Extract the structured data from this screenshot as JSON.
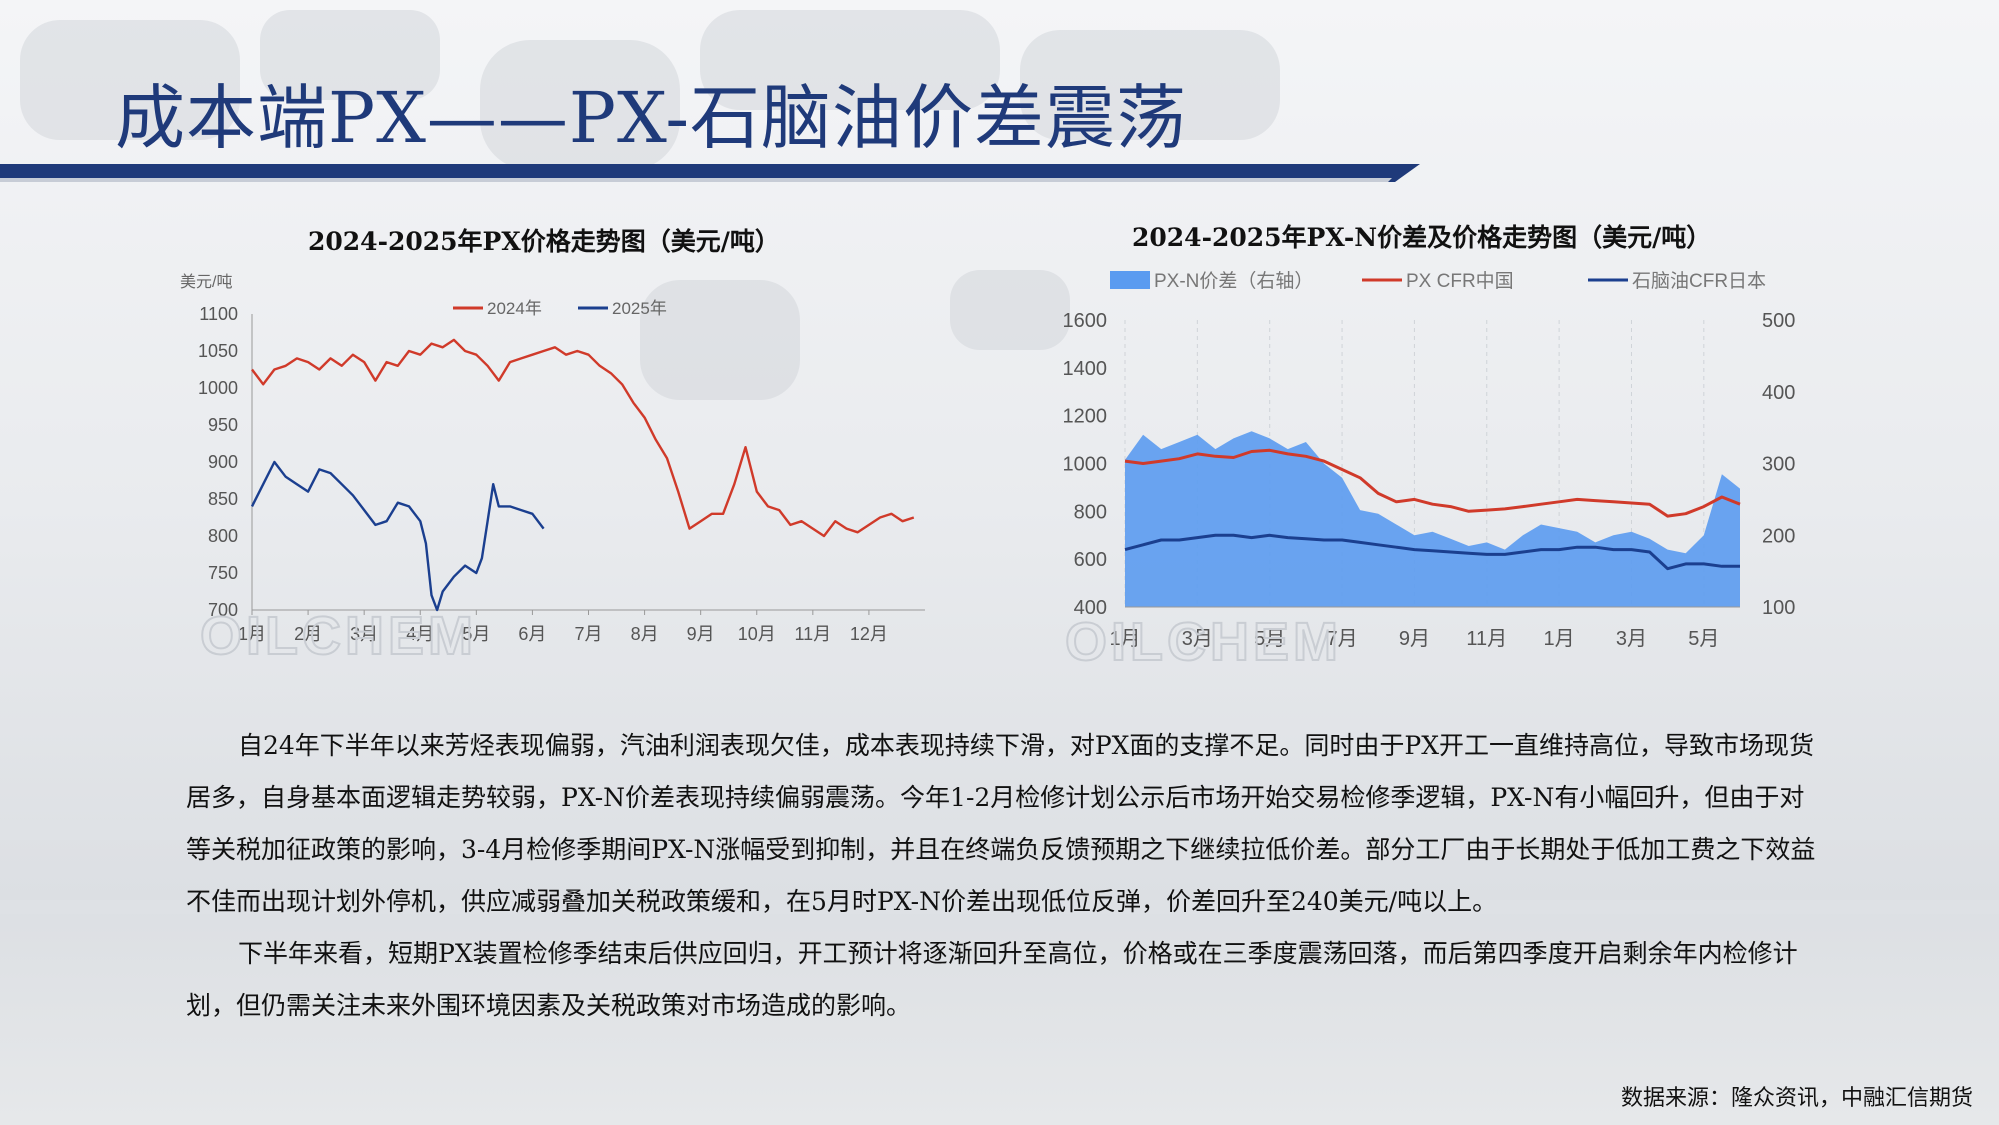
{
  "page": {
    "title": "成本端PX——PX-石脑油价差震荡",
    "paragraphs": [
      "自24年下半年以来芳烃表现偏弱，汽油利润表现欠佳，成本表现持续下滑，对PX面的支撑不足。同时由于PX开工一直维持高位，导致市场现货居多，自身基本面逻辑走势较弱，PX-N价差表现持续偏弱震荡。今年1-2月检修计划公示后市场开始交易检修季逻辑，PX-N有小幅回升，但由于对等关税加征政策的影响，3-4月检修季期间PX-N涨幅受到抑制，并且在终端负反馈预期之下继续拉低价差。部分工厂由于长期处于低加工费之下效益不佳而出现计划外停机，供应减弱叠加关税政策缓和，在5月时PX-N价差出现低位反弹，价差回升至240美元/吨以上。",
      "下半年来看，短期PX装置检修季结束后供应回归，开工预计将逐渐回升至高位，价格或在三季度震荡回落，而后第四季度开启剩余年内检修计划，但仍需关注未来外围环境因素及关税政策对市场造成的影响。"
    ],
    "source": "数据来源：隆众资讯，中融汇信期货",
    "watermark": "OILCHEM",
    "colors": {
      "title": "#1f3a7a",
      "red": "#d03a2a",
      "blue": "#1b3f8f",
      "area": "#5b9bf0"
    }
  },
  "chart_data": [
    {
      "type": "line",
      "title": "2024-2025年PX价格走势图（美元/吨）",
      "ylabel": "美元/吨",
      "ylim": [
        700,
        1100
      ],
      "yticks": [
        700,
        750,
        800,
        850,
        900,
        950,
        1000,
        1050,
        1100
      ],
      "categories": [
        "1月",
        "2月",
        "3月",
        "4月",
        "5月",
        "6月",
        "7月",
        "8月",
        "9月",
        "10月",
        "11月",
        "12月"
      ],
      "legend_position": "top",
      "series": [
        {
          "name": "2024年",
          "color": "#d03a2a",
          "x": [
            1,
            1.2,
            1.4,
            1.6,
            1.8,
            2.0,
            2.2,
            2.4,
            2.6,
            2.8,
            3.0,
            3.2,
            3.4,
            3.6,
            3.8,
            4.0,
            4.2,
            4.4,
            4.6,
            4.8,
            5.0,
            5.2,
            5.4,
            5.6,
            5.8,
            6.0,
            6.2,
            6.4,
            6.6,
            6.8,
            7.0,
            7.2,
            7.4,
            7.6,
            7.8,
            8.0,
            8.2,
            8.4,
            8.6,
            8.8,
            9.0,
            9.2,
            9.4,
            9.6,
            9.8,
            10.0,
            10.2,
            10.4,
            10.6,
            10.8,
            11.0,
            11.2,
            11.4,
            11.6,
            11.8,
            12.0,
            12.2,
            12.4,
            12.6,
            12.8
          ],
          "values": [
            1025,
            1005,
            1025,
            1030,
            1040,
            1035,
            1025,
            1040,
            1030,
            1045,
            1035,
            1010,
            1035,
            1030,
            1050,
            1045,
            1060,
            1055,
            1065,
            1050,
            1045,
            1030,
            1010,
            1035,
            1040,
            1045,
            1050,
            1055,
            1045,
            1050,
            1045,
            1030,
            1020,
            1005,
            980,
            960,
            930,
            905,
            860,
            810,
            820,
            830,
            830,
            870,
            920,
            860,
            840,
            835,
            815,
            820,
            810,
            800,
            820,
            810,
            805,
            815,
            825,
            830,
            820,
            825
          ]
        },
        {
          "name": "2025年",
          "color": "#1b3f8f",
          "x": [
            1,
            1.2,
            1.4,
            1.6,
            1.8,
            2.0,
            2.2,
            2.4,
            2.6,
            2.8,
            3.0,
            3.2,
            3.4,
            3.6,
            3.8,
            4.0,
            4.1,
            4.2,
            4.3,
            4.4,
            4.6,
            4.8,
            5.0,
            5.1,
            5.2,
            5.3,
            5.4,
            5.6,
            5.8,
            6.0,
            6.2
          ],
          "values": [
            840,
            870,
            900,
            880,
            870,
            860,
            890,
            885,
            870,
            855,
            835,
            815,
            820,
            845,
            840,
            820,
            790,
            720,
            700,
            725,
            745,
            760,
            750,
            770,
            820,
            870,
            840,
            840,
            835,
            830,
            810
          ]
        }
      ]
    },
    {
      "type": "line",
      "title": "2024-2025年PX-N价差及价格走势图（美元/吨）",
      "ylim": [
        400,
        1600
      ],
      "yticks": [
        400,
        600,
        800,
        1000,
        1200,
        1400,
        1600
      ],
      "y2lim": [
        100,
        500
      ],
      "y2ticks": [
        100,
        200,
        300,
        400,
        500
      ],
      "categories": [
        "1月",
        "3月",
        "5月",
        "7月",
        "9月",
        "11月",
        "1月",
        "3月",
        "5月"
      ],
      "legend_position": "top",
      "series": [
        {
          "name": "PX-N价差（右轴）",
          "type": "area",
          "axis": "right",
          "color": "#5b9bf0",
          "x": [
            0,
            0.5,
            1,
            1.5,
            2,
            2.5,
            3,
            3.5,
            4,
            4.5,
            5,
            5.5,
            6,
            6.5,
            7,
            7.5,
            8,
            8.5,
            9,
            9.5,
            10,
            10.5,
            11,
            11.5,
            12,
            12.5,
            13,
            13.5,
            14,
            14.5,
            15,
            15.5,
            16,
            16.5,
            17
          ],
          "values": [
            305,
            340,
            320,
            330,
            340,
            320,
            335,
            345,
            335,
            320,
            330,
            300,
            280,
            235,
            230,
            215,
            200,
            205,
            195,
            185,
            190,
            180,
            200,
            215,
            210,
            205,
            190,
            200,
            205,
            195,
            180,
            175,
            200,
            285,
            265
          ]
        },
        {
          "name": "PX CFR中国",
          "color": "#d03a2a",
          "axis": "left",
          "x": [
            0,
            0.5,
            1,
            1.5,
            2,
            2.5,
            3,
            3.5,
            4,
            4.5,
            5,
            5.5,
            6,
            6.5,
            7,
            7.5,
            8,
            8.5,
            9,
            9.5,
            10,
            10.5,
            11,
            11.5,
            12,
            12.5,
            13,
            13.5,
            14,
            14.5,
            15,
            15.5,
            16,
            16.5,
            17
          ],
          "values": [
            1010,
            1000,
            1010,
            1020,
            1040,
            1030,
            1025,
            1050,
            1055,
            1040,
            1030,
            1010,
            975,
            940,
            875,
            840,
            850,
            830,
            820,
            800,
            805,
            810,
            820,
            830,
            840,
            850,
            845,
            840,
            835,
            830,
            780,
            790,
            820,
            860,
            830
          ]
        },
        {
          "name": "石脑油CFR日本",
          "color": "#1b3f8f",
          "axis": "left",
          "x": [
            0,
            0.5,
            1,
            1.5,
            2,
            2.5,
            3,
            3.5,
            4,
            4.5,
            5,
            5.5,
            6,
            6.5,
            7,
            7.5,
            8,
            8.5,
            9,
            9.5,
            10,
            10.5,
            11,
            11.5,
            12,
            12.5,
            13,
            13.5,
            14,
            14.5,
            15,
            15.5,
            16,
            16.5,
            17
          ],
          "values": [
            640,
            660,
            680,
            680,
            690,
            700,
            700,
            690,
            700,
            690,
            685,
            680,
            680,
            670,
            660,
            650,
            640,
            635,
            630,
            625,
            620,
            620,
            630,
            640,
            640,
            650,
            650,
            640,
            640,
            630,
            560,
            580,
            580,
            570,
            570
          ]
        }
      ]
    }
  ]
}
